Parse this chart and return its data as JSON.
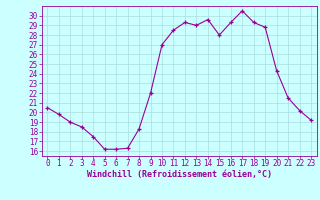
{
  "hours": [
    0,
    1,
    2,
    3,
    4,
    5,
    6,
    7,
    8,
    9,
    10,
    11,
    12,
    13,
    14,
    15,
    16,
    17,
    18,
    19,
    20,
    21,
    22,
    23
  ],
  "values": [
    20.5,
    19.8,
    19.0,
    18.5,
    17.5,
    16.2,
    16.2,
    16.3,
    18.3,
    22.0,
    27.0,
    28.5,
    29.3,
    29.0,
    29.6,
    28.0,
    29.3,
    30.5,
    29.3,
    28.8,
    24.3,
    21.5,
    20.2,
    19.2
  ],
  "line_color": "#990099",
  "marker": "+",
  "bg_color": "#ccffff",
  "grid_color": "#aadddd",
  "xlabel": "Windchill (Refroidissement éolien,°C)",
  "xlabel_color": "#990099",
  "tick_color": "#990099",
  "axis_color": "#990099",
  "ylim": [
    15.5,
    31.0
  ],
  "xlim": [
    -0.5,
    23.5
  ],
  "yticks": [
    16,
    17,
    18,
    19,
    20,
    21,
    22,
    23,
    24,
    25,
    26,
    27,
    28,
    29,
    30
  ],
  "xticks": [
    0,
    1,
    2,
    3,
    4,
    5,
    6,
    7,
    8,
    9,
    10,
    11,
    12,
    13,
    14,
    15,
    16,
    17,
    18,
    19,
    20,
    21,
    22,
    23
  ],
  "tick_fontsize": 5.5,
  "xlabel_fontsize": 6.0
}
